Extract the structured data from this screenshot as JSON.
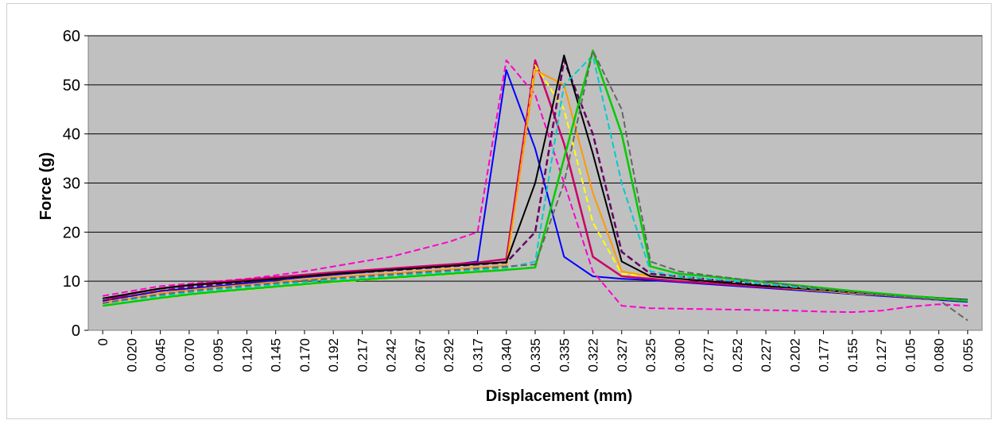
{
  "chart_data": {
    "type": "line",
    "title": "",
    "xlabel": "Displacement (mm)",
    "ylabel": "Force (g)",
    "ylim": [
      0,
      60
    ],
    "yticks": [
      0,
      10,
      20,
      30,
      40,
      50,
      60
    ],
    "categories": [
      "0",
      "0.020",
      "0.045",
      "0.070",
      "0.095",
      "0.120",
      "0.145",
      "0.170",
      "0.192",
      "0.217",
      "0.242",
      "0.267",
      "0.292",
      "0.317",
      "0.340",
      "0.335",
      "0.335",
      "0.322",
      "0.327",
      "0.325",
      "0.300",
      "0.277",
      "0.252",
      "0.227",
      "0.202",
      "0.177",
      "0.155",
      "0.127",
      "0.105",
      "0.080",
      "0.055"
    ],
    "grid": true,
    "legend": "none",
    "plot_background": "#c0c0c0",
    "series": [
      {
        "color": "#0000ff",
        "values": [
          6,
          7,
          8,
          8.5,
          9,
          9.6,
          10.2,
          10.8,
          11.3,
          11.8,
          12.3,
          12.8,
          13.3,
          14,
          53,
          37,
          15,
          11,
          10.5,
          10.2,
          9.8,
          9.4,
          9,
          8.6,
          8.2,
          7.8,
          7.4,
          7,
          6.6,
          6.2,
          5.8
        ]
      },
      {
        "color": "#ff00cc",
        "values": [
          7,
          8,
          9,
          9.5,
          10,
          10.5,
          11.2,
          12,
          13,
          14,
          15,
          16.5,
          18,
          20,
          55,
          48,
          30,
          12,
          5,
          4.5,
          4.4,
          4.3,
          4.2,
          4.1,
          4,
          3.8,
          3.7,
          4,
          4.8,
          5.3,
          5
        ]
      },
      {
        "color": "#cc0066",
        "values": [
          6,
          7.5,
          8.5,
          9.2,
          9.8,
          10.3,
          10.8,
          11.3,
          11.8,
          12.2,
          12.6,
          13,
          13.4,
          13.8,
          14.5,
          55,
          38,
          15,
          11,
          10.5,
          10,
          9.6,
          9.2,
          8.8,
          8.4,
          8,
          7.6,
          7.2,
          6.8,
          6.4,
          6
        ]
      },
      {
        "color": "#ffff00",
        "values": [
          5,
          5.8,
          6.5,
          7.2,
          7.8,
          8.3,
          8.8,
          9.3,
          9.8,
          10.2,
          10.6,
          11,
          11.4,
          11.8,
          12.5,
          54,
          45,
          22,
          11.5,
          11,
          10.5,
          10,
          9.5,
          9,
          8.5,
          8,
          7.5,
          7.2,
          6.8,
          6.4,
          6
        ]
      },
      {
        "color": "#ff9900",
        "values": [
          5.5,
          6.5,
          7.5,
          8.2,
          8.8,
          9.3,
          9.8,
          10.3,
          10.8,
          11.2,
          11.6,
          12,
          12.4,
          12.8,
          13.2,
          53,
          50,
          28,
          12,
          11,
          10.5,
          10,
          9.5,
          9,
          8.5,
          8,
          7.6,
          7.2,
          6.8,
          6.4,
          6
        ]
      },
      {
        "color": "#660066",
        "values": [
          6,
          7,
          8,
          8.8,
          9.4,
          9.9,
          10.4,
          10.9,
          11.4,
          11.8,
          12.2,
          12.6,
          13,
          13.4,
          13.8,
          20,
          55,
          40,
          16,
          11.5,
          11,
          10.4,
          9.8,
          9.2,
          8.7,
          8.2,
          7.7,
          7.3,
          6.9,
          6.5,
          6.2
        ]
      },
      {
        "color": "#000000",
        "values": [
          6.5,
          7.5,
          8.5,
          9.2,
          9.6,
          10,
          10.5,
          11,
          11.5,
          11.9,
          12.3,
          12.7,
          13.1,
          13.5,
          13.9,
          30,
          56,
          36,
          14,
          11,
          10.5,
          10,
          9.5,
          9,
          8.6,
          8.2,
          7.8,
          7.4,
          7,
          6.6,
          6.2
        ]
      },
      {
        "color": "#00cccc",
        "values": [
          5.5,
          6.3,
          7,
          7.7,
          8.3,
          8.8,
          9.3,
          9.8,
          10.3,
          10.7,
          11.1,
          11.5,
          11.9,
          12.3,
          12.7,
          14,
          50,
          56,
          30,
          12,
          11,
          10.5,
          10,
          9.4,
          8.8,
          8.3,
          7.8,
          7.3,
          6.9,
          6.5,
          6.1
        ]
      },
      {
        "color": "#00cc00",
        "values": [
          5,
          5.8,
          6.6,
          7.3,
          7.9,
          8.4,
          8.9,
          9.4,
          9.9,
          10.3,
          10.7,
          11.1,
          11.5,
          11.9,
          12.3,
          12.8,
          35,
          57,
          40,
          13,
          11.5,
          11,
          10.4,
          9.8,
          9.2,
          8.6,
          8,
          7.5,
          7,
          6.5,
          6
        ]
      },
      {
        "color": "#666666",
        "values": [
          5.5,
          6.5,
          7.3,
          8,
          8.6,
          9.1,
          9.6,
          10.1,
          10.6,
          11,
          11.4,
          11.8,
          12.2,
          12.6,
          13,
          13.4,
          30,
          57,
          45,
          14,
          12,
          11.2,
          10.5,
          9.8,
          9.1,
          8.4,
          7.8,
          7.2,
          6.7,
          6.2,
          2
        ]
      }
    ]
  }
}
